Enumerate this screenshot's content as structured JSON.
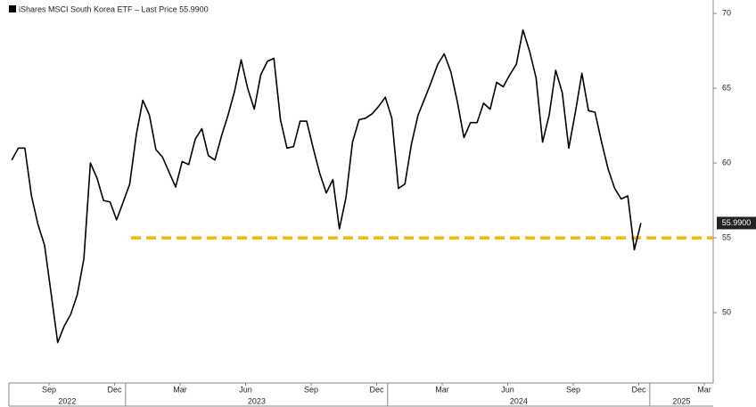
{
  "chart_data": {
    "type": "line",
    "series": [
      {
        "name": "iShares MSCI South Korea ETF – Last Price 55.9900",
        "color": "#000000",
        "x": [
          2022.566,
          2022.591,
          2022.616,
          2022.641,
          2022.666,
          2022.691,
          2022.716,
          2022.741,
          2022.766,
          2022.791,
          2022.816,
          2022.841,
          2022.866,
          2022.891,
          2022.916,
          2022.941,
          2022.966,
          2022.991,
          2023.016,
          2023.041,
          2023.066,
          2023.091,
          2023.116,
          2023.141,
          2023.166,
          2023.191,
          2023.216,
          2023.241,
          2023.266,
          2023.291,
          2023.316,
          2023.341,
          2023.366,
          2023.391,
          2023.416,
          2023.441,
          2023.466,
          2023.491,
          2023.516,
          2023.541,
          2023.566,
          2023.591,
          2023.616,
          2023.641,
          2023.666,
          2023.691,
          2023.716,
          2023.741,
          2023.766,
          2023.791,
          2023.816,
          2023.841,
          2023.866,
          2023.891,
          2023.916,
          2023.941,
          2023.966,
          2023.991,
          2024.016,
          2024.041,
          2024.066,
          2024.091,
          2024.116,
          2024.141,
          2024.166,
          2024.191,
          2024.216,
          2024.241,
          2024.266,
          2024.291,
          2024.316,
          2024.341,
          2024.366,
          2024.391,
          2024.416,
          2024.441,
          2024.466,
          2024.491,
          2024.516,
          2024.541,
          2024.566,
          2024.591,
          2024.616,
          2024.641,
          2024.666,
          2024.691,
          2024.716,
          2024.741,
          2024.766,
          2024.791,
          2024.816,
          2024.841,
          2024.866,
          2024.891,
          2024.916,
          2024.941,
          2024.966
        ],
        "values": [
          60.2,
          61,
          61,
          57.8,
          55.9,
          54.5,
          51.3,
          48,
          49.1,
          49.9,
          51.2,
          53.6,
          60,
          59,
          57.5,
          57.4,
          56.2,
          57.4,
          58.6,
          61.9,
          64.2,
          63.2,
          60.9,
          60.4,
          59.4,
          58.4,
          60.1,
          59.9,
          61.6,
          62.3,
          60.5,
          60.2,
          61.8,
          63.2,
          64.8,
          66.9,
          65,
          63.6,
          65.9,
          66.8,
          67,
          62.9,
          61,
          61.1,
          62.8,
          62.8,
          61,
          59.3,
          58,
          58.9,
          55.6,
          57.7,
          61.4,
          62.9,
          63,
          63.3,
          63.8,
          64.4,
          63,
          58.3,
          58.6,
          61.3,
          63.2,
          64.3,
          65.4,
          66.6,
          67.3,
          66.1,
          64.1,
          61.7,
          62.7,
          62.7,
          64,
          63.6,
          65.4,
          65.1,
          65.9,
          66.6,
          68.9,
          67.5,
          65.7,
          61.4,
          63.2,
          66.2,
          64.7,
          61,
          63.4,
          66,
          63.5,
          63.4,
          61.4,
          59.6,
          58.3,
          57.6,
          57.8,
          54.2,
          55.99
        ]
      }
    ],
    "last_price": {
      "value": 55.99,
      "label": "55.9900"
    },
    "reference_line": {
      "value": 55,
      "x_start": 2023.021,
      "color": "#f5b800"
    },
    "xlim": [
      2022.555,
      2025.242
    ],
    "xticks": [
      {
        "value": 2022.708,
        "label": "Sep"
      },
      {
        "value": 2022.958,
        "label": "Dec"
      },
      {
        "value": 2023.208,
        "label": "Mar"
      },
      {
        "value": 2023.458,
        "label": "Jun"
      },
      {
        "value": 2023.708,
        "label": "Sep"
      },
      {
        "value": 2023.958,
        "label": "Dec"
      },
      {
        "value": 2024.208,
        "label": "Mar"
      },
      {
        "value": 2024.458,
        "label": "Jun"
      },
      {
        "value": 2024.708,
        "label": "Sep"
      },
      {
        "value": 2024.958,
        "label": "Dec"
      },
      {
        "value": 2025.208,
        "label": "Mar"
      }
    ],
    "year_ticks": [
      2023,
      2024,
      2025
    ],
    "year_labels": [
      "2022",
      "2023",
      "2024",
      "2025"
    ],
    "ylim": [
      45.3,
      70.9
    ],
    "yticks": [
      50,
      55,
      60,
      65,
      70
    ],
    "grid": false
  }
}
